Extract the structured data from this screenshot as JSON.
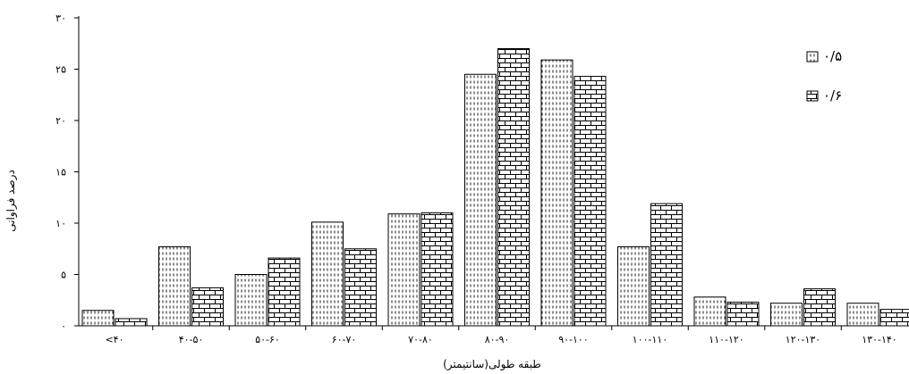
{
  "chart_data": {
    "type": "bar",
    "xlabel": "طبقه طولی(سانتیمتر)",
    "ylabel": "درصد فراوانی",
    "ylim": [
      0,
      30
    ],
    "yticks": [
      "۰",
      "۵",
      "۱۰",
      "۱۵",
      "۲۰",
      "۲۵",
      "۳۰"
    ],
    "ytick_values": [
      0,
      5,
      10,
      15,
      20,
      25,
      30
    ],
    "categories": [
      "<۴۰",
      "۴۰-۵۰",
      "۵۰-۶۰",
      "۶۰-۷۰",
      "۷۰-۸۰",
      "۸۰-۹۰",
      "۹۰-۱۰۰",
      "۱۰۰-۱۱۰",
      "۱۱۰-۱۲۰",
      "۱۲۰-۱۳۰",
      "۱۳۰-۱۴۰"
    ],
    "series": [
      {
        "name": "۰/۵",
        "pattern": "dotted-vertical",
        "values": [
          1.5,
          7.7,
          5.0,
          10.1,
          10.9,
          24.5,
          25.9,
          7.7,
          2.8,
          2.2,
          2.2
        ]
      },
      {
        "name": "۰/۶",
        "pattern": "brick",
        "values": [
          0.7,
          3.7,
          6.6,
          7.5,
          11.0,
          27.0,
          24.3,
          11.9,
          2.3,
          3.6,
          1.6
        ]
      }
    ],
    "legend_position": "top-right",
    "grid": false,
    "colors": {
      "bar_fill": "#ffffff",
      "bar_stroke": "#000000",
      "pattern": "#000000"
    }
  }
}
